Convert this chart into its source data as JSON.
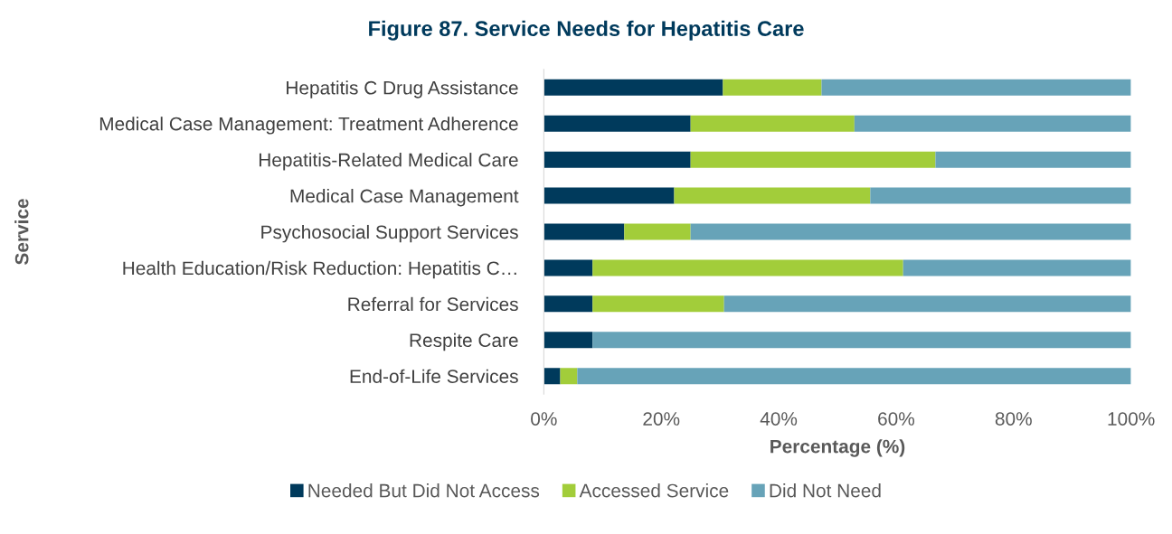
{
  "chart_data": {
    "type": "bar",
    "orientation": "horizontal",
    "stacked": true,
    "title": "Figure 87. Service Needs for Hepatitis Care",
    "xlabel": "Percentage (%)",
    "ylabel": "Service",
    "categories": [
      "Hepatitis C Drug Assistance",
      "Medical Case Management: Treatment Adherence",
      "Hepatitis-Related Medical Care",
      "Medical Case Management",
      "Psychosocial Support Services",
      "Health Education/Risk Reduction: Hepatitis C…",
      "Referral for Services",
      "Respite Care",
      "End-of-Life Services"
    ],
    "series": [
      {
        "name": "Needed But Did Not Access",
        "color": "#003a5c",
        "values": [
          30.5,
          25.0,
          25.0,
          22.2,
          13.7,
          8.3,
          8.3,
          8.3,
          2.8
        ]
      },
      {
        "name": "Accessed Service",
        "color": "#a2cd3a",
        "values": [
          16.8,
          27.9,
          41.7,
          33.4,
          11.3,
          52.9,
          22.4,
          0,
          2.9
        ]
      },
      {
        "name": "Did Not Need",
        "color": "#67a3b8",
        "values": [
          52.7,
          47.1,
          33.3,
          44.4,
          75.0,
          38.8,
          69.3,
          91.7,
          94.3
        ]
      }
    ],
    "xlim": [
      0,
      100
    ],
    "xticks": [
      {
        "value": 0,
        "label": "0%"
      },
      {
        "value": 20,
        "label": "20%"
      },
      {
        "value": 40,
        "label": "40%"
      },
      {
        "value": 60,
        "label": "60%"
      },
      {
        "value": 80,
        "label": "80%"
      },
      {
        "value": 100,
        "label": "100%"
      }
    ],
    "grid": false,
    "legend": "bottom"
  }
}
